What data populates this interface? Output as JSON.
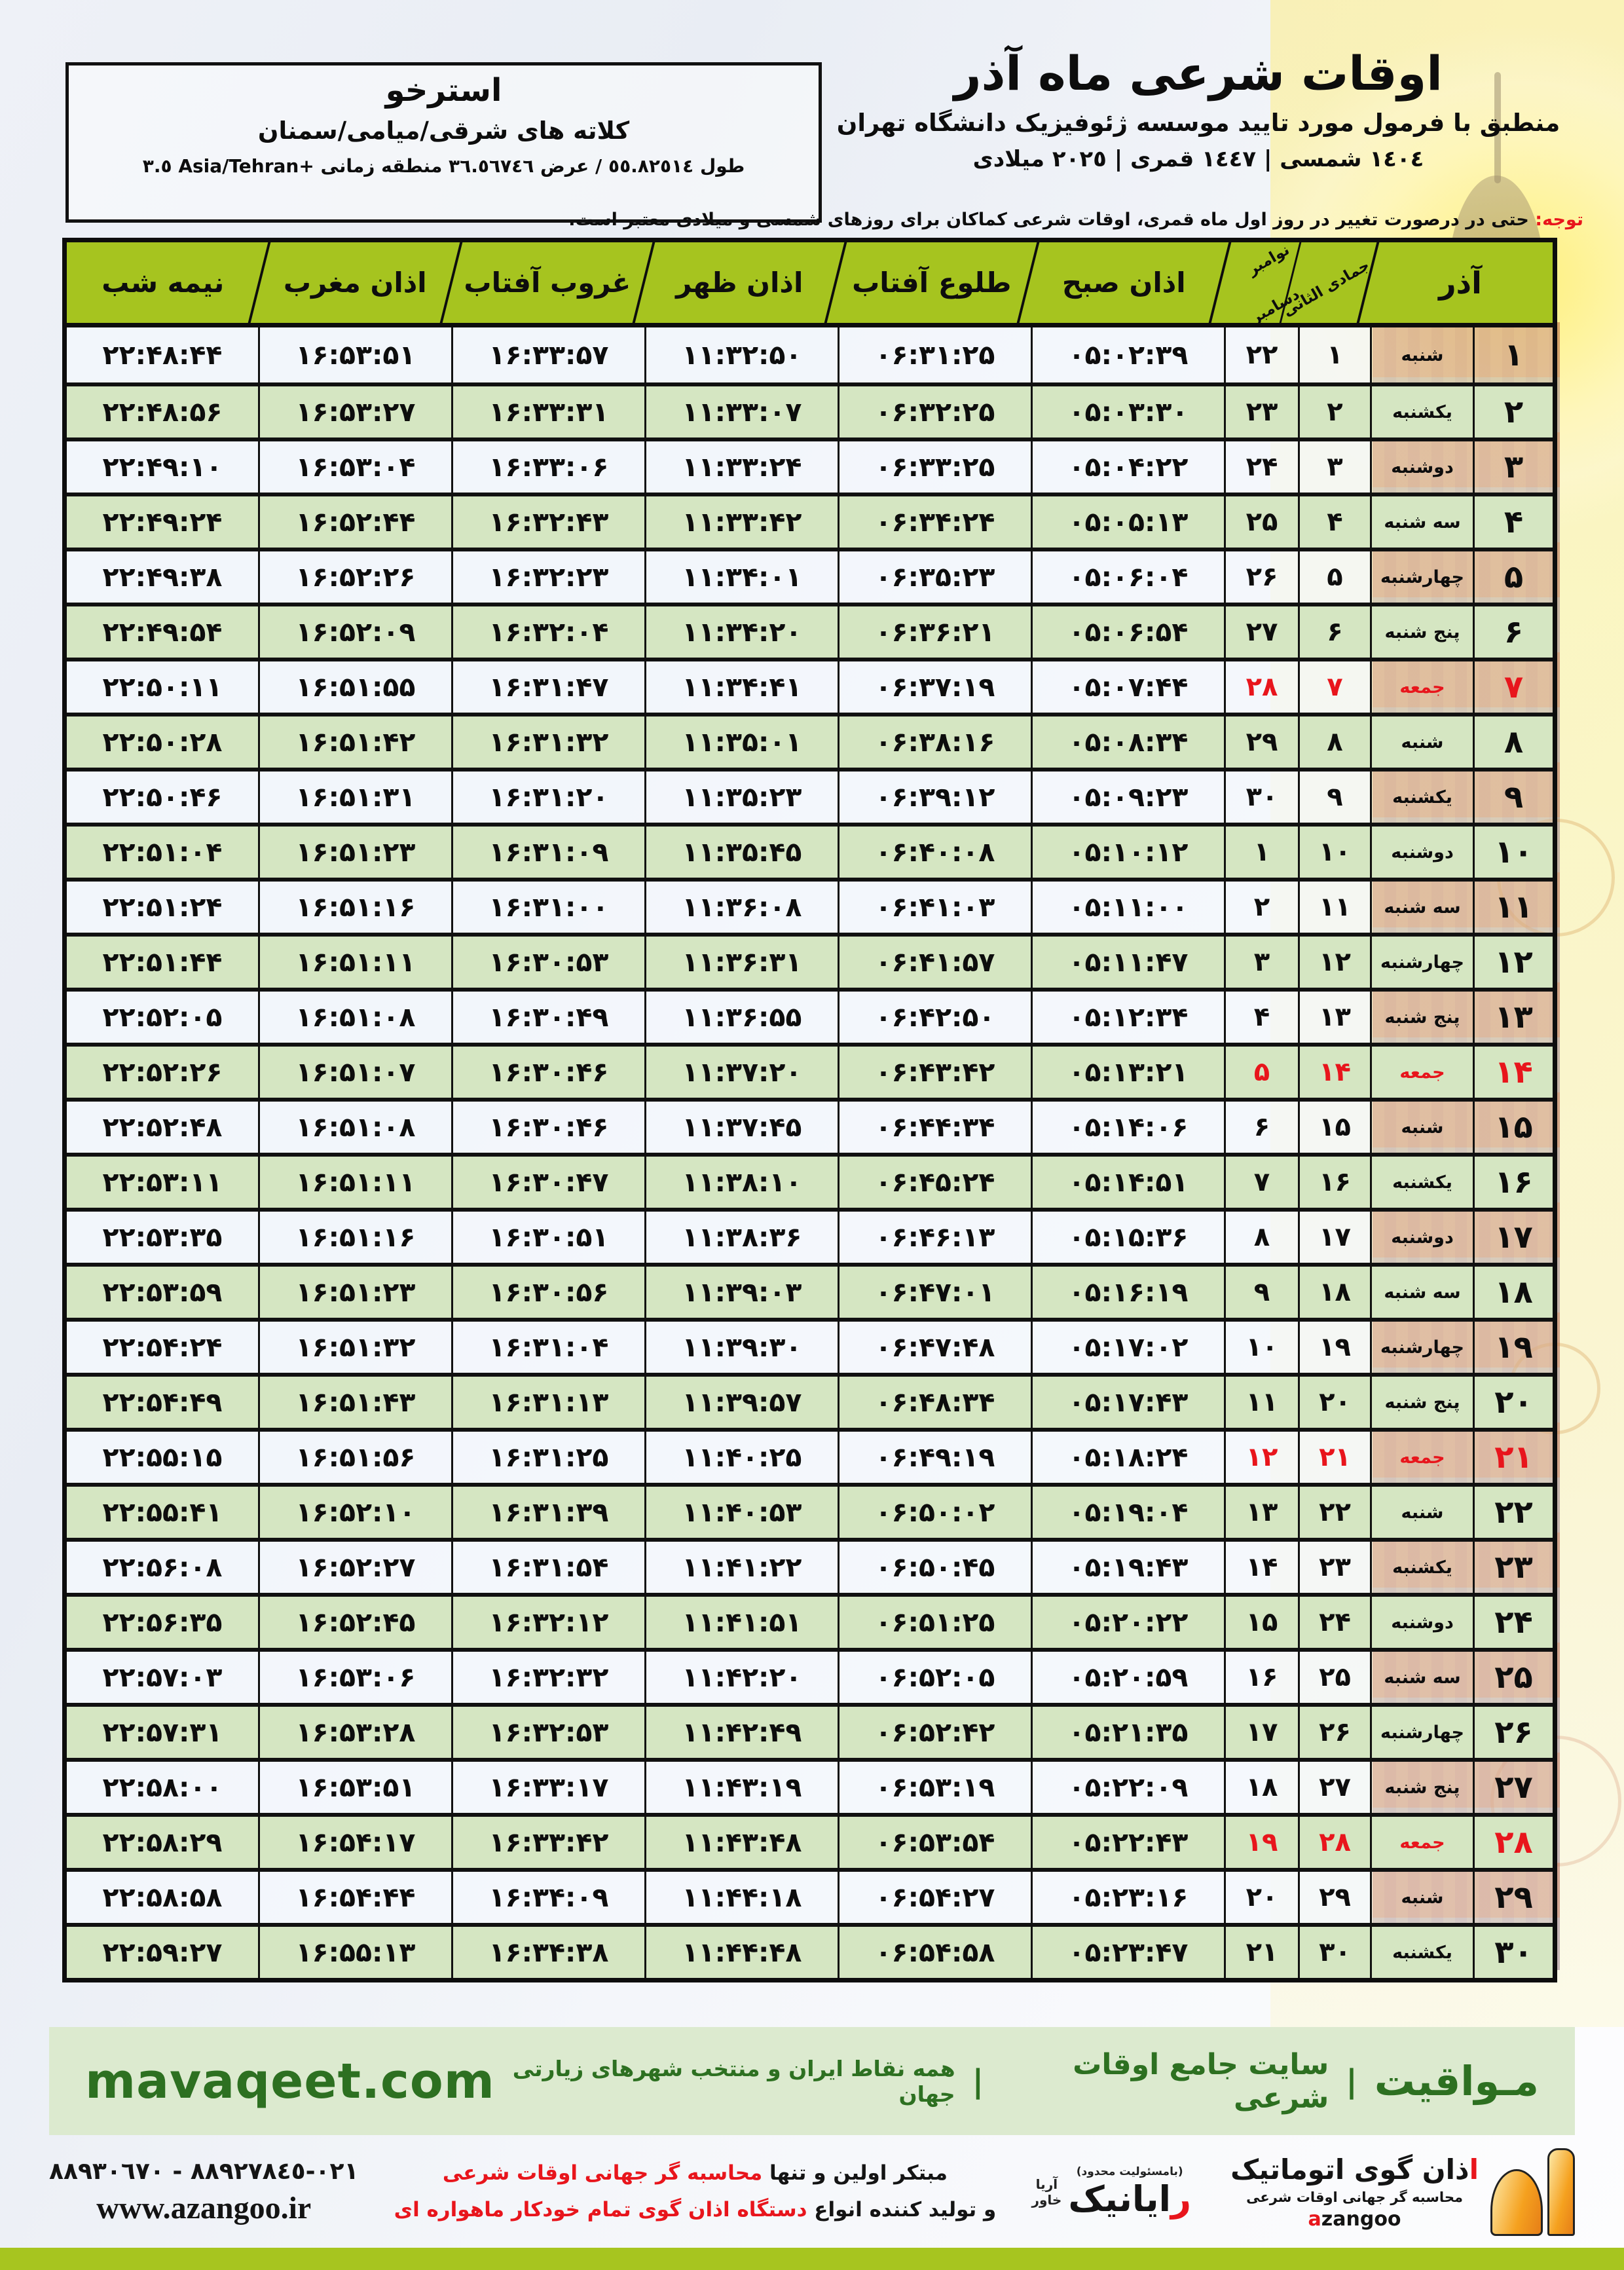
{
  "colors": {
    "accent_green": "#a6c41f",
    "row_green": "#d5e6c2",
    "row_light": "#f2f5fa",
    "friday_red": "#e8151c",
    "band_bg": "#dceacf",
    "band_text": "#2d7021",
    "logo_orange": "#f5a11f"
  },
  "header": {
    "title": "اوقات شرعی ماه آذر",
    "subtitle": "منطبق با فرمول مورد تایید موسسه ژئوفیزیک دانشگاه تهران",
    "years": "١٤٠٤ شمسی | ١٤٤٧ قمری | ٢٠٢٥ میلادی",
    "location": {
      "city": "استرخو",
      "region": "کلاته های شرقی/میامی/سمنان",
      "coordinates": "طول ٥٥.٨٢٥١٤ / عرض ٣٦.٥٦٧٤٦ منطقه زمانی ‎+٣.٥‎ Asia/Tehran"
    },
    "notice_label": "توجه:",
    "notice_text": " حتی در درصورت تغییر در روز اول ماه قمری، اوقات شرعی کماکان برای روزهای شمسی و میلادی معتبر است."
  },
  "table": {
    "month_label": "آذر",
    "hijri_month_label": "جمادی الثانی",
    "greg_month_nov": "نوامبر",
    "greg_month_dec": "دسامبر",
    "columns": [
      "اذان صبح",
      "طلوع آفتاب",
      "اذان ظهر",
      "غروب آفتاب",
      "اذان مغرب",
      "نیمه شب"
    ],
    "rows": [
      {
        "d": "۱",
        "w": "شنبه",
        "h": "۱",
        "g": "۲۲",
        "f": false,
        "t": [
          "۰۵:۰۲:۳۹",
          "۰۶:۳۱:۲۵",
          "۱۱:۳۲:۵۰",
          "۱۶:۳۳:۵۷",
          "۱۶:۵۳:۵۱",
          "۲۲:۴۸:۴۴"
        ]
      },
      {
        "d": "۲",
        "w": "یکشنبه",
        "h": "۲",
        "g": "۲۳",
        "f": false,
        "t": [
          "۰۵:۰۳:۳۰",
          "۰۶:۳۲:۲۵",
          "۱۱:۳۳:۰۷",
          "۱۶:۳۳:۳۱",
          "۱۶:۵۳:۲۷",
          "۲۲:۴۸:۵۶"
        ]
      },
      {
        "d": "۳",
        "w": "دوشنبه",
        "h": "۳",
        "g": "۲۴",
        "f": false,
        "t": [
          "۰۵:۰۴:۲۲",
          "۰۶:۳۳:۲۵",
          "۱۱:۳۳:۲۴",
          "۱۶:۳۳:۰۶",
          "۱۶:۵۳:۰۴",
          "۲۲:۴۹:۱۰"
        ]
      },
      {
        "d": "۴",
        "w": "سه شنبه",
        "h": "۴",
        "g": "۲۵",
        "f": false,
        "t": [
          "۰۵:۰۵:۱۳",
          "۰۶:۳۴:۲۴",
          "۱۱:۳۳:۴۲",
          "۱۶:۳۲:۴۳",
          "۱۶:۵۲:۴۴",
          "۲۲:۴۹:۲۴"
        ]
      },
      {
        "d": "۵",
        "w": "چهارشنبه",
        "h": "۵",
        "g": "۲۶",
        "f": false,
        "t": [
          "۰۵:۰۶:۰۴",
          "۰۶:۳۵:۲۳",
          "۱۱:۳۴:۰۱",
          "۱۶:۳۲:۲۳",
          "۱۶:۵۲:۲۶",
          "۲۲:۴۹:۳۸"
        ]
      },
      {
        "d": "۶",
        "w": "پنج شنبه",
        "h": "۶",
        "g": "۲۷",
        "f": false,
        "t": [
          "۰۵:۰۶:۵۴",
          "۰۶:۳۶:۲۱",
          "۱۱:۳۴:۲۰",
          "۱۶:۳۲:۰۴",
          "۱۶:۵۲:۰۹",
          "۲۲:۴۹:۵۴"
        ]
      },
      {
        "d": "۷",
        "w": "جمعه",
        "h": "۷",
        "g": "۲۸",
        "f": true,
        "t": [
          "۰۵:۰۷:۴۴",
          "۰۶:۳۷:۱۹",
          "۱۱:۳۴:۴۱",
          "۱۶:۳۱:۴۷",
          "۱۶:۵۱:۵۵",
          "۲۲:۵۰:۱۱"
        ]
      },
      {
        "d": "۸",
        "w": "شنبه",
        "h": "۸",
        "g": "۲۹",
        "f": false,
        "t": [
          "۰۵:۰۸:۳۴",
          "۰۶:۳۸:۱۶",
          "۱۱:۳۵:۰۱",
          "۱۶:۳۱:۳۲",
          "۱۶:۵۱:۴۲",
          "۲۲:۵۰:۲۸"
        ]
      },
      {
        "d": "۹",
        "w": "یکشنبه",
        "h": "۹",
        "g": "۳۰",
        "f": false,
        "t": [
          "۰۵:۰۹:۲۳",
          "۰۶:۳۹:۱۲",
          "۱۱:۳۵:۲۳",
          "۱۶:۳۱:۲۰",
          "۱۶:۵۱:۳۱",
          "۲۲:۵۰:۴۶"
        ]
      },
      {
        "d": "۱۰",
        "w": "دوشنبه",
        "h": "۱۰",
        "g": "۱",
        "f": false,
        "t": [
          "۰۵:۱۰:۱۲",
          "۰۶:۴۰:۰۸",
          "۱۱:۳۵:۴۵",
          "۱۶:۳۱:۰۹",
          "۱۶:۵۱:۲۳",
          "۲۲:۵۱:۰۴"
        ]
      },
      {
        "d": "۱۱",
        "w": "سه شنبه",
        "h": "۱۱",
        "g": "۲",
        "f": false,
        "t": [
          "۰۵:۱۱:۰۰",
          "۰۶:۴۱:۰۳",
          "۱۱:۳۶:۰۸",
          "۱۶:۳۱:۰۰",
          "۱۶:۵۱:۱۶",
          "۲۲:۵۱:۲۴"
        ]
      },
      {
        "d": "۱۲",
        "w": "چهارشنبه",
        "h": "۱۲",
        "g": "۳",
        "f": false,
        "t": [
          "۰۵:۱۱:۴۷",
          "۰۶:۴۱:۵۷",
          "۱۱:۳۶:۳۱",
          "۱۶:۳۰:۵۳",
          "۱۶:۵۱:۱۱",
          "۲۲:۵۱:۴۴"
        ]
      },
      {
        "d": "۱۳",
        "w": "پنج شنبه",
        "h": "۱۳",
        "g": "۴",
        "f": false,
        "t": [
          "۰۵:۱۲:۳۴",
          "۰۶:۴۲:۵۰",
          "۱۱:۳۶:۵۵",
          "۱۶:۳۰:۴۹",
          "۱۶:۵۱:۰۸",
          "۲۲:۵۲:۰۵"
        ]
      },
      {
        "d": "۱۴",
        "w": "جمعه",
        "h": "۱۴",
        "g": "۵",
        "f": true,
        "t": [
          "۰۵:۱۳:۲۱",
          "۰۶:۴۳:۴۲",
          "۱۱:۳۷:۲۰",
          "۱۶:۳۰:۴۶",
          "۱۶:۵۱:۰۷",
          "۲۲:۵۲:۲۶"
        ]
      },
      {
        "d": "۱۵",
        "w": "شنبه",
        "h": "۱۵",
        "g": "۶",
        "f": false,
        "t": [
          "۰۵:۱۴:۰۶",
          "۰۶:۴۴:۳۴",
          "۱۱:۳۷:۴۵",
          "۱۶:۳۰:۴۶",
          "۱۶:۵۱:۰۸",
          "۲۲:۵۲:۴۸"
        ]
      },
      {
        "d": "۱۶",
        "w": "یکشنبه",
        "h": "۱۶",
        "g": "۷",
        "f": false,
        "t": [
          "۰۵:۱۴:۵۱",
          "۰۶:۴۵:۲۴",
          "۱۱:۳۸:۱۰",
          "۱۶:۳۰:۴۷",
          "۱۶:۵۱:۱۱",
          "۲۲:۵۳:۱۱"
        ]
      },
      {
        "d": "۱۷",
        "w": "دوشنبه",
        "h": "۱۷",
        "g": "۸",
        "f": false,
        "t": [
          "۰۵:۱۵:۳۶",
          "۰۶:۴۶:۱۳",
          "۱۱:۳۸:۳۶",
          "۱۶:۳۰:۵۱",
          "۱۶:۵۱:۱۶",
          "۲۲:۵۳:۳۵"
        ]
      },
      {
        "d": "۱۸",
        "w": "سه شنبه",
        "h": "۱۸",
        "g": "۹",
        "f": false,
        "t": [
          "۰۵:۱۶:۱۹",
          "۰۶:۴۷:۰۱",
          "۱۱:۳۹:۰۳",
          "۱۶:۳۰:۵۶",
          "۱۶:۵۱:۲۳",
          "۲۲:۵۳:۵۹"
        ]
      },
      {
        "d": "۱۹",
        "w": "چهارشنبه",
        "h": "۱۹",
        "g": "۱۰",
        "f": false,
        "t": [
          "۰۵:۱۷:۰۲",
          "۰۶:۴۷:۴۸",
          "۱۱:۳۹:۳۰",
          "۱۶:۳۱:۰۴",
          "۱۶:۵۱:۳۲",
          "۲۲:۵۴:۲۴"
        ]
      },
      {
        "d": "۲۰",
        "w": "پنج شنبه",
        "h": "۲۰",
        "g": "۱۱",
        "f": false,
        "t": [
          "۰۵:۱۷:۴۳",
          "۰۶:۴۸:۳۴",
          "۱۱:۳۹:۵۷",
          "۱۶:۳۱:۱۳",
          "۱۶:۵۱:۴۳",
          "۲۲:۵۴:۴۹"
        ]
      },
      {
        "d": "۲۱",
        "w": "جمعه",
        "h": "۲۱",
        "g": "۱۲",
        "f": true,
        "t": [
          "۰۵:۱۸:۲۴",
          "۰۶:۴۹:۱۹",
          "۱۱:۴۰:۲۵",
          "۱۶:۳۱:۲۵",
          "۱۶:۵۱:۵۶",
          "۲۲:۵۵:۱۵"
        ]
      },
      {
        "d": "۲۲",
        "w": "شنبه",
        "h": "۲۲",
        "g": "۱۳",
        "f": false,
        "t": [
          "۰۵:۱۹:۰۴",
          "۰۶:۵۰:۰۲",
          "۱۱:۴۰:۵۳",
          "۱۶:۳۱:۳۹",
          "۱۶:۵۲:۱۰",
          "۲۲:۵۵:۴۱"
        ]
      },
      {
        "d": "۲۳",
        "w": "یکشنبه",
        "h": "۲۳",
        "g": "۱۴",
        "f": false,
        "t": [
          "۰۵:۱۹:۴۳",
          "۰۶:۵۰:۴۵",
          "۱۱:۴۱:۲۲",
          "۱۶:۳۱:۵۴",
          "۱۶:۵۲:۲۷",
          "۲۲:۵۶:۰۸"
        ]
      },
      {
        "d": "۲۴",
        "w": "دوشنبه",
        "h": "۲۴",
        "g": "۱۵",
        "f": false,
        "t": [
          "۰۵:۲۰:۲۲",
          "۰۶:۵۱:۲۵",
          "۱۱:۴۱:۵۱",
          "۱۶:۳۲:۱۲",
          "۱۶:۵۲:۴۵",
          "۲۲:۵۶:۳۵"
        ]
      },
      {
        "d": "۲۵",
        "w": "سه شنبه",
        "h": "۲۵",
        "g": "۱۶",
        "f": false,
        "t": [
          "۰۵:۲۰:۵۹",
          "۰۶:۵۲:۰۵",
          "۱۱:۴۲:۲۰",
          "۱۶:۳۲:۳۲",
          "۱۶:۵۳:۰۶",
          "۲۲:۵۷:۰۳"
        ]
      },
      {
        "d": "۲۶",
        "w": "چهارشنبه",
        "h": "۲۶",
        "g": "۱۷",
        "f": false,
        "t": [
          "۰۵:۲۱:۳۵",
          "۰۶:۵۲:۴۲",
          "۱۱:۴۲:۴۹",
          "۱۶:۳۲:۵۳",
          "۱۶:۵۳:۲۸",
          "۲۲:۵۷:۳۱"
        ]
      },
      {
        "d": "۲۷",
        "w": "پنج شنبه",
        "h": "۲۷",
        "g": "۱۸",
        "f": false,
        "t": [
          "۰۵:۲۲:۰۹",
          "۰۶:۵۳:۱۹",
          "۱۱:۴۳:۱۹",
          "۱۶:۳۳:۱۷",
          "۱۶:۵۳:۵۱",
          "۲۲:۵۸:۰۰"
        ]
      },
      {
        "d": "۲۸",
        "w": "جمعه",
        "h": "۲۸",
        "g": "۱۹",
        "f": true,
        "t": [
          "۰۵:۲۲:۴۳",
          "۰۶:۵۳:۵۴",
          "۱۱:۴۳:۴۸",
          "۱۶:۳۳:۴۲",
          "۱۶:۵۴:۱۷",
          "۲۲:۵۸:۲۹"
        ]
      },
      {
        "d": "۲۹",
        "w": "شنبه",
        "h": "۲۹",
        "g": "۲۰",
        "f": false,
        "t": [
          "۰۵:۲۳:۱۶",
          "۰۶:۵۴:۲۷",
          "۱۱:۴۴:۱۸",
          "۱۶:۳۴:۰۹",
          "۱۶:۵۴:۴۴",
          "۲۲:۵۸:۵۸"
        ]
      },
      {
        "d": "۳۰",
        "w": "یکشنبه",
        "h": "۳۰",
        "g": "۲۱",
        "f": false,
        "t": [
          "۰۵:۲۳:۴۷",
          "۰۶:۵۴:۵۸",
          "۱۱:۴۴:۴۸",
          "۱۶:۳۴:۳۸",
          "۱۶:۵۵:۱۳",
          "۲۲:۵۹:۲۷"
        ]
      }
    ]
  },
  "green_band": {
    "brand": "مـواقیت",
    "sep": "|",
    "site_desc": "سایت جامع اوقات شرعی",
    "coverage": "همه نقاط ایران و منتخب شهرهای زیارتی جهان",
    "domain": "mavaqeet.com"
  },
  "footer": {
    "phones": "٠٢١-٨٨٩٢٧٨٤٥ - ٨٨٩٣٠٦٧٠",
    "website": "www.azangoo.ir",
    "line1_black": "مبتکر اولین و تنها ",
    "line1_red": "محاسبه گر جهانی اوقات شرعی",
    "line2_black": "و تولید کننده انواع ",
    "line2_red": "دستگاه اذان گوی تمام خودکار ماهواره ای",
    "rayanik": {
      "note": "(بامسئولیت محدود)",
      "name_first": "ر",
      "name_rest": "ایانیک",
      "sub1": "آریا",
      "sub2": "خاور"
    },
    "azangoo": {
      "name_first": "ا",
      "name_rest": "ذان گوی اتوماتیک",
      "tagline": "محاسبه گر جهانی اوقات شرعی",
      "latin_first": "a",
      "latin_rest": "zangoo"
    }
  }
}
